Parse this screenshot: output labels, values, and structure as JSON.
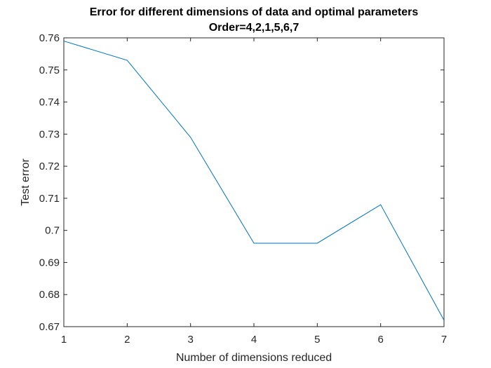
{
  "colors": {
    "line": "#0072BD",
    "axis": "#262626",
    "background": "#ffffff"
  },
  "chart_data": {
    "type": "line",
    "title": "Error for different dimensions of data and optimal parameters",
    "subtitle": "Order=4,2,1,5,6,7",
    "xlabel": "Number of dimensions reduced",
    "ylabel": "Test error",
    "xlim": [
      1,
      7
    ],
    "ylim": [
      0.67,
      0.76
    ],
    "x_ticks": [
      "1",
      "2",
      "3",
      "4",
      "5",
      "6",
      "7"
    ],
    "y_ticks": [
      "0.67",
      "0.68",
      "0.69",
      "0.7",
      "0.71",
      "0.72",
      "0.73",
      "0.74",
      "0.75",
      "0.76"
    ],
    "grid": false,
    "series": [
      {
        "x": [
          1,
          2,
          3,
          4,
          5,
          6,
          7
        ],
        "y": [
          0.759,
          0.753,
          0.729,
          0.696,
          0.696,
          0.708,
          0.672
        ]
      }
    ]
  }
}
